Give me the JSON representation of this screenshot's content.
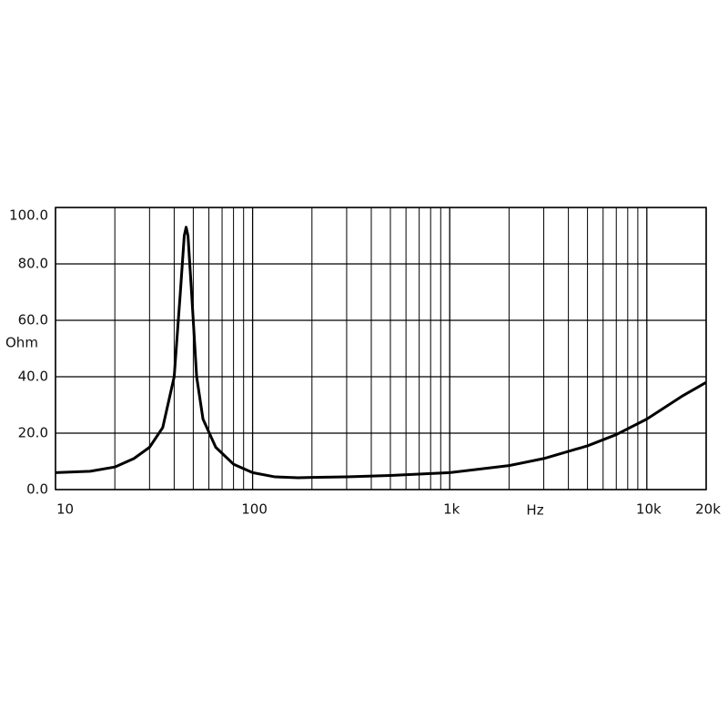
{
  "chart_data": {
    "type": "line",
    "x_label": "Hz",
    "y_label": "Ohm",
    "xscale": "log",
    "xlim": [
      10,
      20000
    ],
    "ylim": [
      0,
      100
    ],
    "xticks": [
      10,
      100,
      {
        "value": 1000,
        "label": "1k"
      },
      {
        "value": 10000,
        "label": "10k"
      },
      {
        "value": 20000,
        "label": "20k"
      }
    ],
    "xminor": [
      20,
      30,
      40,
      50,
      60,
      70,
      80,
      90,
      200,
      300,
      400,
      500,
      600,
      700,
      800,
      900,
      2000,
      3000,
      4000,
      5000,
      6000,
      7000,
      8000,
      9000
    ],
    "yticks": [
      {
        "value": 0,
        "label": "0.0"
      },
      {
        "value": 20,
        "label": "20.0"
      },
      {
        "value": 40,
        "label": "40.0"
      },
      {
        "value": 60,
        "label": "60.0"
      },
      {
        "value": 80,
        "label": "80.0"
      },
      {
        "value": 100,
        "label": "100.0"
      }
    ],
    "grid": true,
    "color": "#000000",
    "x": [
      10,
      15,
      20,
      25,
      30,
      35,
      40,
      43,
      45,
      46,
      47,
      49,
      52,
      56,
      65,
      80,
      100,
      130,
      170,
      200,
      300,
      500,
      1000,
      2000,
      3000,
      5000,
      7000,
      10000,
      15000,
      20000
    ],
    "values": [
      6,
      6.5,
      8,
      11,
      15,
      22,
      40,
      70,
      90,
      93,
      90,
      70,
      40,
      25,
      15,
      9,
      6,
      4.5,
      4.2,
      4.3,
      4.5,
      5,
      6,
      8.5,
      11,
      15.5,
      19.5,
      25,
      33,
      38
    ]
  }
}
